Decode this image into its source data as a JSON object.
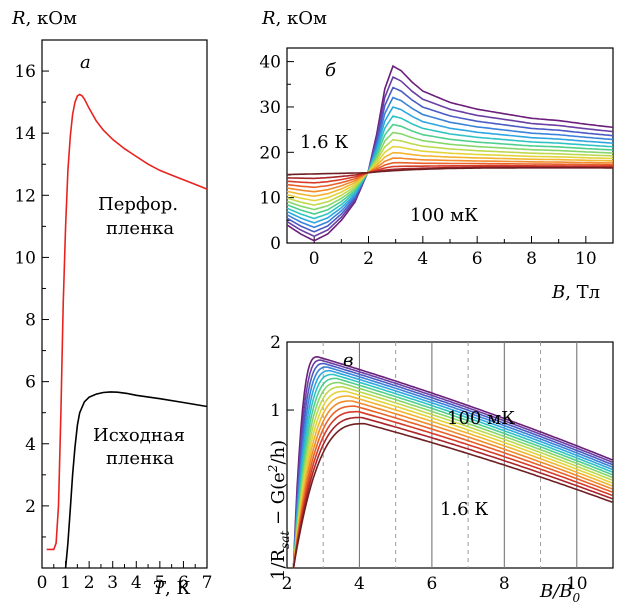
{
  "chart_data": [
    {
      "panel": "а",
      "type": "line",
      "xlabel": "T, К",
      "ylabel": "R, кОм",
      "xlim": [
        0,
        7
      ],
      "ylim": [
        0,
        17
      ],
      "xticks": [
        "0",
        "1",
        "2",
        "3",
        "4",
        "5",
        "6",
        "7"
      ],
      "yticks": [
        "2",
        "4",
        "6",
        "8",
        "10",
        "12",
        "14",
        "16"
      ],
      "annotations": [
        "Перфор.",
        "пленка",
        "Исходная",
        "пленка"
      ],
      "series": [
        {
          "color": "#e8231f",
          "x": [
            0.2,
            0.5,
            0.6,
            0.7,
            0.8,
            0.9,
            1.0,
            1.1,
            1.2,
            1.3,
            1.4,
            1.5,
            1.6,
            1.7,
            1.8,
            2.0,
            2.3,
            2.6,
            3.0,
            3.5,
            4.0,
            4.5,
            5.0,
            5.5,
            6.0,
            6.5,
            7.0
          ],
          "y": [
            0.6,
            0.6,
            0.8,
            2.0,
            5.0,
            8.5,
            11.0,
            12.8,
            13.9,
            14.6,
            15.0,
            15.2,
            15.25,
            15.2,
            15.1,
            14.8,
            14.4,
            14.1,
            13.8,
            13.5,
            13.25,
            13.0,
            12.8,
            12.65,
            12.5,
            12.35,
            12.2
          ]
        },
        {
          "color": "#000000",
          "x": [
            1.0,
            1.1,
            1.2,
            1.3,
            1.4,
            1.5,
            1.6,
            1.8,
            2.0,
            2.3,
            2.6,
            2.9,
            3.2,
            3.6,
            4.0,
            5.0,
            6.0,
            7.0
          ],
          "y": [
            0.0,
            0.8,
            1.9,
            3.0,
            3.9,
            4.6,
            5.0,
            5.35,
            5.5,
            5.6,
            5.65,
            5.67,
            5.66,
            5.62,
            5.56,
            5.45,
            5.33,
            5.2
          ]
        }
      ]
    },
    {
      "panel": "б",
      "type": "line",
      "xlabel": "B, Тл",
      "ylabel": "R, кОм",
      "xlim": [
        -1,
        11
      ],
      "ylim": [
        0,
        43
      ],
      "xticks": [
        "0",
        "2",
        "4",
        "6",
        "8",
        "10"
      ],
      "yticks": [
        "0",
        "10",
        "20",
        "30",
        "40"
      ],
      "annotations": [
        "1.6 К",
        "100 мК"
      ],
      "series_count": 16,
      "colors": [
        "#6b1e7a",
        "#6a3fa3",
        "#4a5bc4",
        "#3a82d9",
        "#2ea6e0",
        "#2fc3c3",
        "#4ecf8e",
        "#86d76a",
        "#bfd94e",
        "#e3d43a",
        "#f2b532",
        "#f08a2d",
        "#e8602a",
        "#d63a28",
        "#a8252a",
        "#6e1f22"
      ],
      "low_temp_peak_curve": {
        "B": [
          -1,
          -0.5,
          0,
          0.5,
          1,
          1.5,
          2,
          2.3,
          2.6,
          2.9,
          3.2,
          3.6,
          4,
          5,
          6,
          7,
          8,
          9,
          10,
          11
        ],
        "R": [
          4,
          2,
          0.5,
          2,
          5,
          9,
          16,
          24,
          34,
          39,
          38,
          35.5,
          33.5,
          31,
          29.5,
          28.5,
          27.5,
          27,
          26.2,
          25.5
        ]
      }
    },
    {
      "panel": "в",
      "type": "line",
      "xlabel": "B/B0",
      "ylabel": "1/Rsat − G(e²/h)",
      "xlim": [
        2,
        11
      ],
      "ylim": [
        0.2,
        2
      ],
      "yscale": "log",
      "xticks": [
        "2",
        "4",
        "6",
        "8",
        "10"
      ],
      "yticks": [
        "1",
        "2"
      ],
      "annotations": [
        "100 мК",
        "1.6 К"
      ],
      "grid": "vertical lines at even integers (solid) and odd integers (dashed)",
      "series_count": 16
    }
  ],
  "labels": {
    "a": {
      "ylab_R": "R",
      "ylab_unit": ", кОм",
      "xlab_T": "T",
      "xlab_unit": ", К",
      "letter": "а",
      "perf1": "Перфор.",
      "perf2": "пленка",
      "orig1": "Исходная",
      "orig2": "пленка"
    },
    "b": {
      "ylab_R": "R",
      "ylab_unit": ", кОм",
      "xlab_B": "B",
      "xlab_unit": ", Тл",
      "letter": "б",
      "t_high": "1.6 К",
      "t_low": "100 мК"
    },
    "c": {
      "letter": "в",
      "t_low": "100 мК",
      "t_high": "1.6 К",
      "xlab": "B/B",
      "xlab_sub": "0",
      "ylab": "1/R",
      "ylab_sub": "sat",
      "ylab_rest": " − G(e",
      "ylab_sup": "2",
      "ylab_end": "/h)"
    }
  }
}
